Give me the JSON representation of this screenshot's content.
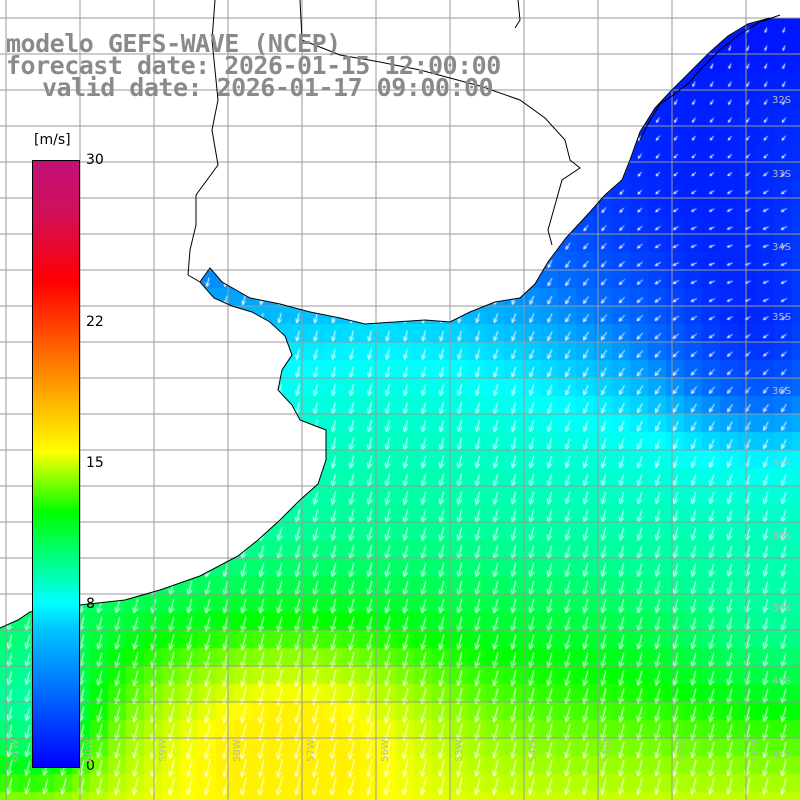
{
  "title": {
    "line1": "modelo GEFS-WAVE (NCEP)",
    "line2": "forecast date: 2026-01-15 12:00:00",
    "line3": "valid date: 2026-01-17 09:00:00"
  },
  "colorbar": {
    "unit": "[m/s]",
    "ticks": [
      {
        "label": "30",
        "value": 30
      },
      {
        "label": "22",
        "value": 22
      },
      {
        "label": "15",
        "value": 15
      },
      {
        "label": "8",
        "value": 8
      },
      {
        "label": "0",
        "value": 0
      }
    ],
    "min": 0,
    "max": 30
  },
  "map": {
    "lat_labels": [
      "32S",
      "33S",
      "34S",
      "35S",
      "36S",
      "37S",
      "38S",
      "39S",
      "40S",
      "41S"
    ],
    "lon_labels": [
      "61W",
      "60W",
      "59W",
      "58W",
      "57W",
      "56W",
      "55W",
      "54W",
      "53W",
      "52W",
      "51W"
    ],
    "lat_range": [
      -41.5,
      -30.5
    ],
    "lon_range": [
      -62,
      -51
    ],
    "colors": {
      "land": "#ffffff",
      "grid": "#9a9a9a",
      "coast": "#000000",
      "arrows": "#ffffff",
      "title": "#8a8a8a"
    },
    "field": "wind speed [m/s] with direction arrows"
  }
}
